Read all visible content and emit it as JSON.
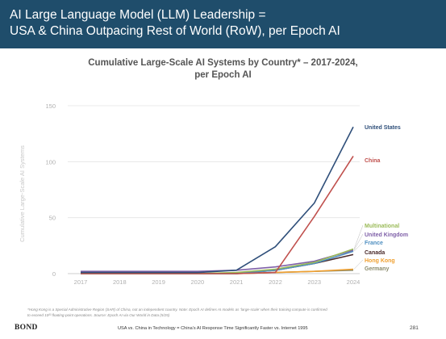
{
  "header": {
    "line1": "AI Large Language Model (LLM) Leadership =",
    "line2": "USA & China Outpacing Rest of World (RoW), per Epoch AI"
  },
  "chart_data": {
    "type": "line",
    "title_line1": "Cumulative Large-Scale AI Systems by Country* – 2017-2024,",
    "title_line2": "per Epoch AI",
    "xlabel": "",
    "ylabel": "Cumulative Large-Scale AI Systems",
    "x": [
      2017,
      2018,
      2019,
      2020,
      2021,
      2022,
      2023,
      2024
    ],
    "ylim": [
      0,
      150
    ],
    "yticks": [
      0,
      50,
      100,
      150
    ],
    "grid": "horizontal",
    "legend": "direct labels at right end of lines",
    "series": [
      {
        "name": "United States",
        "color": "#2f4f7a",
        "values": [
          1,
          1,
          1,
          1,
          3,
          24,
          63,
          131
        ]
      },
      {
        "name": "China",
        "color": "#c0504d",
        "values": [
          0,
          0,
          0,
          0,
          0,
          1,
          51,
          105
        ]
      },
      {
        "name": "Multinational",
        "color": "#9bbb59",
        "values": [
          0,
          0,
          0,
          0,
          1,
          4,
          10,
          22
        ]
      },
      {
        "name": "United Kingdom",
        "color": "#7f60a8",
        "values": [
          2,
          2,
          2,
          2,
          3,
          6,
          11,
          21
        ]
      },
      {
        "name": "France",
        "color": "#4f8fc0",
        "values": [
          0,
          0,
          0,
          0,
          0,
          3,
          9,
          20
        ]
      },
      {
        "name": "Canada",
        "color": "#4a2a2a",
        "values": [
          0,
          0,
          0,
          0,
          0,
          3,
          9,
          17
        ]
      },
      {
        "name": "Hong Kong",
        "color": "#f0a030",
        "values": [
          0,
          0,
          0,
          0,
          0,
          1,
          2,
          4
        ]
      },
      {
        "name": "Germany",
        "color": "#8a8a6a",
        "values": [
          0,
          0,
          0,
          0,
          0,
          1,
          2,
          3
        ]
      }
    ]
  },
  "footnote": {
    "line1": "*Hong Kong is a Special Administrative Region (SAR) of China, not an independent country. Note: Epoch AI defines AI models as ‘large-scale’ when their training compute is confirmed",
    "line2": "to exceed 10²³ floating-point operations. Source: Epoch AI via Our World in Data (5/25)"
  },
  "footer": {
    "logo": "BOND",
    "text": "USA vs. China in Technology = China’s AI Response Time Significantly Faster vs. Internet 1995",
    "page": "281"
  }
}
